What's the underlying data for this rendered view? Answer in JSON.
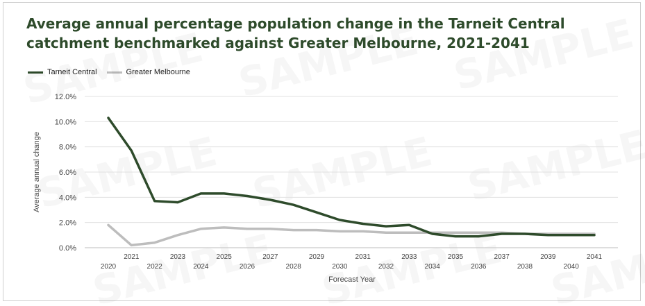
{
  "chart_data": {
    "type": "line",
    "title": "Average annual percentage population change in the Tarneit Central catchment benchmarked against Greater Melbourne, 2021-2041",
    "xlabel": "Forecast Year",
    "ylabel": "Average annual change",
    "x": [
      2020,
      2021,
      2022,
      2023,
      2024,
      2025,
      2026,
      2027,
      2028,
      2029,
      2030,
      2031,
      2032,
      2033,
      2034,
      2035,
      2036,
      2037,
      2038,
      2039,
      2040,
      2041
    ],
    "yticks": [
      "0.0%",
      "2.0%",
      "4.0%",
      "6.0%",
      "8.0%",
      "10.0%",
      "12.0%"
    ],
    "ylim": [
      0,
      12
    ],
    "grid": true,
    "legend_position": "top-left",
    "series": [
      {
        "name": "Tarneit Central",
        "color": "#2e4b2b",
        "values": [
          10.3,
          7.7,
          3.7,
          3.6,
          4.3,
          4.3,
          4.1,
          3.8,
          3.4,
          2.8,
          2.2,
          1.9,
          1.7,
          1.8,
          1.1,
          0.9,
          0.9,
          1.1,
          1.1,
          1.0,
          1.0,
          1.0
        ]
      },
      {
        "name": "Greater Melbourne",
        "color": "#bdbdbd",
        "values": [
          1.8,
          0.2,
          0.4,
          1.0,
          1.5,
          1.6,
          1.5,
          1.5,
          1.4,
          1.4,
          1.3,
          1.3,
          1.2,
          1.2,
          1.2,
          1.2,
          1.2,
          1.2,
          1.1,
          1.1,
          1.1,
          1.1
        ]
      }
    ]
  },
  "watermark": "SAMPLE"
}
